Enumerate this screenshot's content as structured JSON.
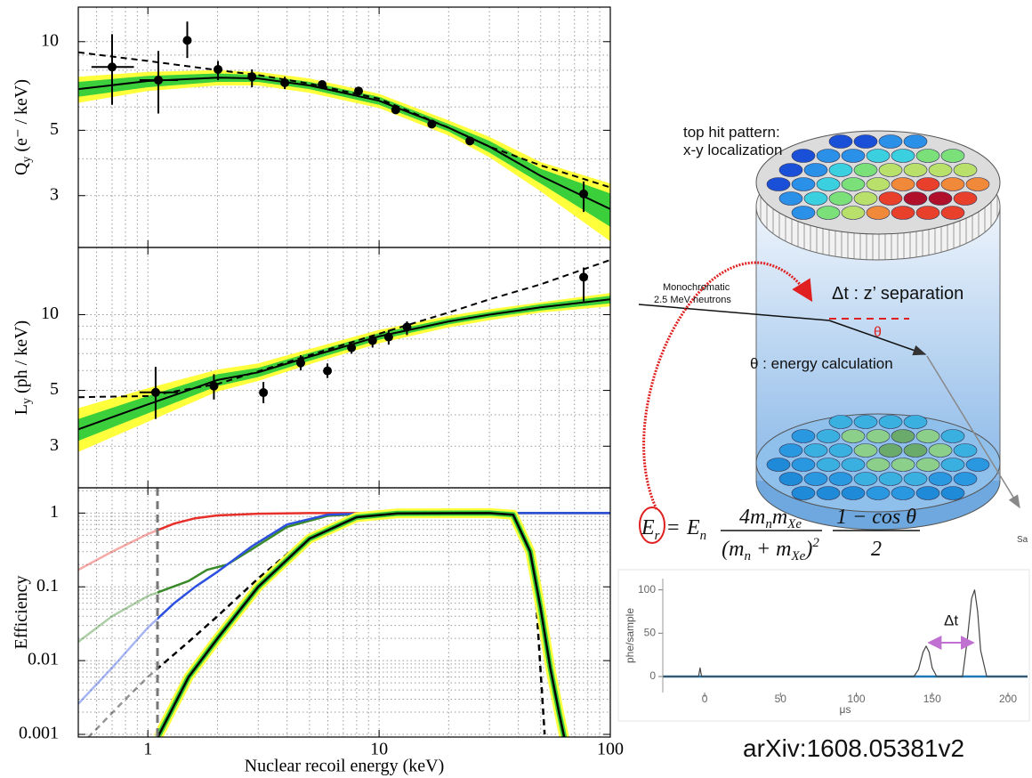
{
  "chart_data": [
    {
      "type": "scatter",
      "ylabel": "Q",
      "ylabel_sub": "y",
      "ylabel_rest": " (e⁻ / keV)",
      "xlim": [
        0.5,
        100
      ],
      "ylim": [
        2,
        13.1
      ],
      "xlog": true,
      "ylog": true,
      "xticks": [
        1,
        10,
        100
      ],
      "xtick_labels": false,
      "yticks": [
        3,
        5,
        10
      ],
      "grid": true,
      "curve_x": [
        0.5,
        1,
        2,
        3,
        5,
        10,
        20,
        30,
        50,
        100
      ],
      "bands": [
        {
          "color": "#ffff3c",
          "low": [
            6.2,
            6.8,
            7.1,
            7.1,
            6.7,
            5.95,
            4.8,
            4.05,
            3.1,
            2.1
          ],
          "high": [
            7.6,
            7.9,
            8.0,
            7.9,
            7.5,
            6.65,
            5.4,
            4.75,
            3.9,
            3.3
          ]
        },
        {
          "color": "#3ccf3c",
          "low": [
            6.5,
            7.0,
            7.3,
            7.3,
            6.9,
            6.1,
            4.95,
            4.2,
            3.3,
            2.35
          ],
          "high": [
            7.3,
            7.65,
            7.8,
            7.7,
            7.3,
            6.5,
            5.25,
            4.6,
            3.7,
            3.05
          ]
        }
      ],
      "curves": [
        {
          "color": "#000000",
          "dashed": false,
          "values": [
            6.9,
            7.35,
            7.55,
            7.5,
            7.1,
            6.3,
            5.1,
            4.4,
            3.5,
            2.7
          ]
        },
        {
          "color": "#000000",
          "dashed": true,
          "values": [
            9.2,
            8.6,
            8.0,
            7.7,
            7.2,
            6.4,
            5.1,
            4.4,
            3.8,
            3.2
          ]
        }
      ],
      "points": {
        "color": "#000000",
        "x": [
          0.7,
          1.11,
          1.48,
          2.01,
          2.82,
          3.91,
          5.67,
          8.15,
          11.8,
          16.9,
          24.7,
          76.7
        ],
        "values": [
          8.2,
          7.4,
          10.1,
          8.05,
          7.6,
          7.25,
          7.15,
          6.8,
          5.87,
          5.25,
          4.6,
          3.04
        ],
        "y_low": [
          6.1,
          5.7,
          8.8,
          7.4,
          7.0,
          6.9,
          null,
          null,
          null,
          null,
          null,
          2.64
        ],
        "y_high": [
          10.6,
          9.3,
          11.7,
          8.6,
          8.05,
          7.6,
          null,
          null,
          null,
          null,
          null,
          3.35
        ],
        "x_low": [
          0.57,
          0.92,
          null,
          null,
          null,
          null,
          null,
          null,
          null,
          null,
          null,
          null
        ],
        "x_high": [
          0.87,
          1.35,
          null,
          null,
          null,
          null,
          null,
          null,
          null,
          null,
          null,
          null
        ]
      }
    },
    {
      "type": "scatter",
      "ylabel": "L",
      "ylabel_sub": "y",
      "ylabel_rest": " (ph / keV)",
      "xlim": [
        0.5,
        100
      ],
      "ylim": [
        2.05,
        18.5
      ],
      "xlog": true,
      "ylog": true,
      "xticks": [
        1,
        10,
        100
      ],
      "xtick_labels": false,
      "yticks": [
        3,
        5,
        10
      ],
      "grid": true,
      "curve_x": [
        0.5,
        1,
        2,
        3,
        5,
        10,
        20,
        30,
        50,
        100
      ],
      "bands": [
        {
          "color": "#ffff3c",
          "low": [
            2.85,
            3.75,
            4.95,
            5.45,
            6.35,
            7.7,
            8.9,
            9.5,
            10.2,
            10.8
          ],
          "high": [
            4.25,
            5.1,
            6.05,
            6.4,
            7.3,
            8.7,
            9.9,
            10.5,
            11.2,
            12.2
          ]
        },
        {
          "color": "#3ccf3c",
          "low": [
            3.15,
            4.05,
            5.2,
            5.65,
            6.55,
            7.95,
            9.15,
            9.75,
            10.4,
            11.1
          ],
          "high": [
            3.85,
            4.75,
            5.8,
            6.15,
            7.05,
            8.45,
            9.65,
            10.25,
            11.0,
            11.9
          ]
        }
      ],
      "curves": [
        {
          "color": "#000000",
          "dashed": false,
          "values": [
            3.5,
            4.4,
            5.5,
            5.9,
            6.8,
            8.2,
            9.4,
            10.0,
            10.7,
            11.5
          ]
        },
        {
          "color": "#000000",
          "dashed": true,
          "values": [
            4.7,
            4.75,
            5.3,
            5.95,
            6.9,
            8.4,
            10.2,
            11.5,
            13.2,
            16.5
          ]
        }
      ],
      "points": {
        "color": "#000000",
        "x": [
          1.08,
          1.93,
          3.16,
          4.58,
          5.98,
          7.6,
          9.37,
          11.0,
          13.2,
          76.7
        ],
        "values": [
          4.91,
          5.2,
          4.9,
          6.43,
          5.98,
          7.39,
          7.89,
          8.15,
          8.93,
          14.1
        ],
        "y_low": [
          3.85,
          4.6,
          4.45,
          6.0,
          5.6,
          7.0,
          7.4,
          7.6,
          8.3,
          11.3
        ],
        "y_high": [
          6.2,
          5.8,
          5.4,
          6.9,
          6.4,
          7.8,
          8.3,
          8.7,
          9.4,
          15.4
        ],
        "x_low": [
          0.92,
          null,
          null,
          null,
          null,
          null,
          null,
          null,
          null,
          null
        ],
        "x_high": [
          1.35,
          null,
          null,
          null,
          null,
          null,
          null,
          null,
          null,
          null
        ]
      }
    },
    {
      "type": "line",
      "ylabel": "Efficiency",
      "xlabel": "Nuclear recoil energy (keV)",
      "xlim": [
        0.5,
        100
      ],
      "ylim": [
        0.00092,
        2.2
      ],
      "xlog": true,
      "ylog": true,
      "xticks": [
        1,
        10,
        100
      ],
      "yticks": [
        0.001,
        0.01,
        0.1,
        1
      ],
      "grid": true,
      "vline": {
        "value": 1.1,
        "color": "#777777"
      },
      "fade_left_of_vline": true,
      "series": [
        {
          "color": "#e8302a",
          "x": [
            0.5,
            0.7,
            1,
            1.3,
            1.6,
            2,
            3,
            5,
            100
          ],
          "values": [
            0.17,
            0.3,
            0.52,
            0.72,
            0.85,
            0.93,
            0.98,
            1,
            1
          ]
        },
        {
          "color": "#3a8a2a",
          "x": [
            0.5,
            0.7,
            1,
            1.5,
            1.8,
            2.2,
            2.8,
            4,
            6,
            10,
            100
          ],
          "values": [
            0.018,
            0.04,
            0.075,
            0.12,
            0.17,
            0.2,
            0.32,
            0.65,
            0.92,
            1,
            1
          ]
        },
        {
          "color": "#2c4fe0",
          "x": [
            0.5,
            0.7,
            1,
            1.3,
            1.6,
            2,
            2.8,
            4,
            6,
            10,
            100
          ],
          "values": [
            0.0026,
            0.008,
            0.028,
            0.06,
            0.1,
            0.16,
            0.35,
            0.7,
            0.95,
            1,
            1
          ]
        },
        {
          "color": "#000000",
          "dashed": true,
          "x": [
            0.55,
            0.8,
            1,
            1.5,
            2,
            3,
            5,
            8,
            12,
            30,
            40,
            45,
            48,
            52
          ],
          "values": [
            0.0009,
            0.003,
            0.006,
            0.018,
            0.04,
            0.13,
            0.5,
            0.9,
            1,
            1,
            0.8,
            0.3,
            0.05,
            0.001
          ]
        },
        {
          "color": "#000000",
          "halo_colors": [
            "#ffff3c",
            "#3ccf3c"
          ],
          "x": [
            1.1,
            1.5,
            2,
            3,
            5,
            8,
            12,
            30,
            38,
            45,
            50,
            55,
            60,
            65
          ],
          "values": [
            0.0009,
            0.006,
            0.02,
            0.1,
            0.45,
            0.88,
            0.99,
            1,
            0.95,
            0.3,
            0.05,
            0.008,
            0.002,
            0.0006
          ]
        }
      ]
    },
    {
      "type": "line",
      "ylabel": "phe/sample",
      "xlabel": "μs",
      "xlim": [
        -27.6,
        212.9
      ],
      "ylim": [
        -18.5,
        113
      ],
      "xticks": [
        0,
        50,
        100,
        150,
        200
      ],
      "yticks": [
        0,
        50,
        100
      ],
      "grid": false,
      "baseline": {
        "value": 0,
        "color": "#1f77b4"
      },
      "annotation": {
        "text": "Δt",
        "x_start": 148,
        "x_end": 177,
        "color": "#c070d0"
      },
      "series": [
        {
          "color": "#444444",
          "x": [
            -27.6,
            -4,
            -3,
            -2,
            138,
            141,
            144,
            146,
            148,
            150,
            153,
            170,
            173,
            176,
            178,
            180,
            182,
            186,
            212.9
          ],
          "values": [
            0,
            0,
            10,
            0,
            0,
            8,
            28,
            35,
            28,
            10,
            0,
            0,
            40,
            90,
            100,
            75,
            30,
            0,
            0
          ]
        }
      ]
    }
  ],
  "diagram": {
    "hit_title": "top hit pattern:",
    "hit_subtitle": "x-y localization",
    "beam_1": "Monochromatic",
    "beam_2": "2.5 MeV neutrons",
    "dt_label": "Δt : z’ separation",
    "theta": "θ",
    "theta_label": "θ : energy calculation",
    "cut_text": "Sa",
    "formula": {
      "lhs": "E",
      "lhs_sub": "r",
      "eq": "=",
      "en": "E",
      "en_sub": "n",
      "num1": "4m",
      "num1_sub1": "n",
      "num1_m": "m",
      "num1_sub2": "Xe",
      "den1_open": "(m",
      "den1_sub1": "n",
      "den1_plus": " + m",
      "den1_sub2": "Xe",
      "den1_close": ")",
      "den1_sup": "2",
      "num2": "1 − cos θ",
      "den2": "2"
    }
  },
  "footer": "arXiv:1608.05381v2"
}
